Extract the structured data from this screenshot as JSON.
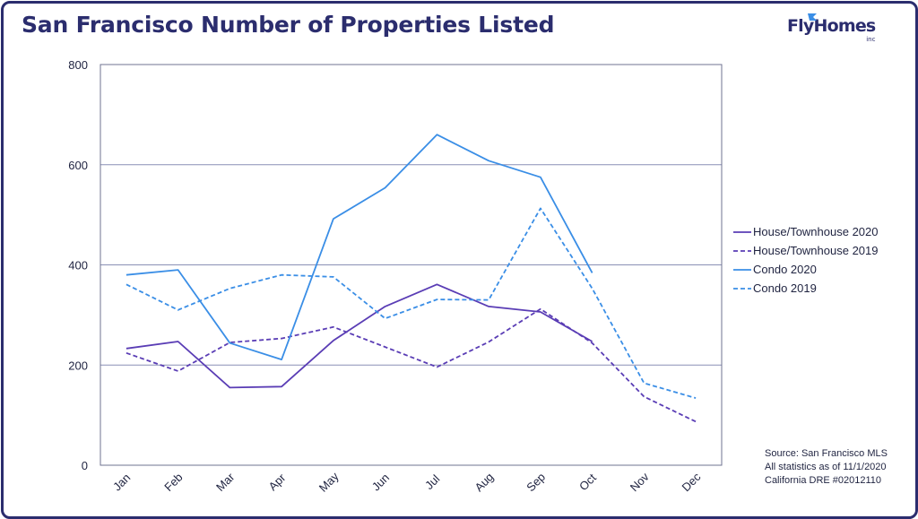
{
  "header": {
    "title": "San Francisco Number of Properties Listed",
    "logo_text": "FlyHomes",
    "logo_sub": "inc"
  },
  "colors": {
    "frame": "#2b2d6e",
    "house": "#5a3db5",
    "condo": "#3a8ee6",
    "grid": "#8a8fb5",
    "text": "#1f2340"
  },
  "source": {
    "line1": "Source: San Francisco MLS",
    "line2": "All statistics as of 11/1/2020",
    "line3": "California DRE #02012110"
  },
  "chart_data": {
    "type": "line",
    "title": "San Francisco Number of Properties Listed",
    "xlabel": "",
    "ylabel": "",
    "ylim": [
      0,
      800
    ],
    "yticks": [
      0,
      200,
      400,
      600,
      800
    ],
    "grid": true,
    "legend_position": "right",
    "categories": [
      "Jan",
      "Feb",
      "Mar",
      "Apr",
      "May",
      "Jun",
      "Jul",
      "Aug",
      "Sep",
      "Oct",
      "Nov",
      "Dec"
    ],
    "series": [
      {
        "name": "House/Townhouse 2020",
        "color": "#5a3db5",
        "dash": false,
        "values": [
          233,
          247,
          155,
          157,
          249,
          317,
          361,
          317,
          306,
          247,
          null,
          null
        ]
      },
      {
        "name": "House/Townhouse 2019",
        "color": "#5a3db5",
        "dash": true,
        "values": [
          224,
          188,
          245,
          253,
          276,
          236,
          196,
          246,
          312,
          244,
          137,
          87
        ]
      },
      {
        "name": "Condo 2020",
        "color": "#3a8ee6",
        "dash": false,
        "values": [
          380,
          390,
          244,
          211,
          492,
          554,
          660,
          608,
          575,
          384,
          null,
          null
        ]
      },
      {
        "name": "Condo 2019",
        "color": "#3a8ee6",
        "dash": true,
        "values": [
          361,
          310,
          353,
          380,
          376,
          293,
          331,
          330,
          513,
          353,
          164,
          134
        ]
      }
    ]
  }
}
